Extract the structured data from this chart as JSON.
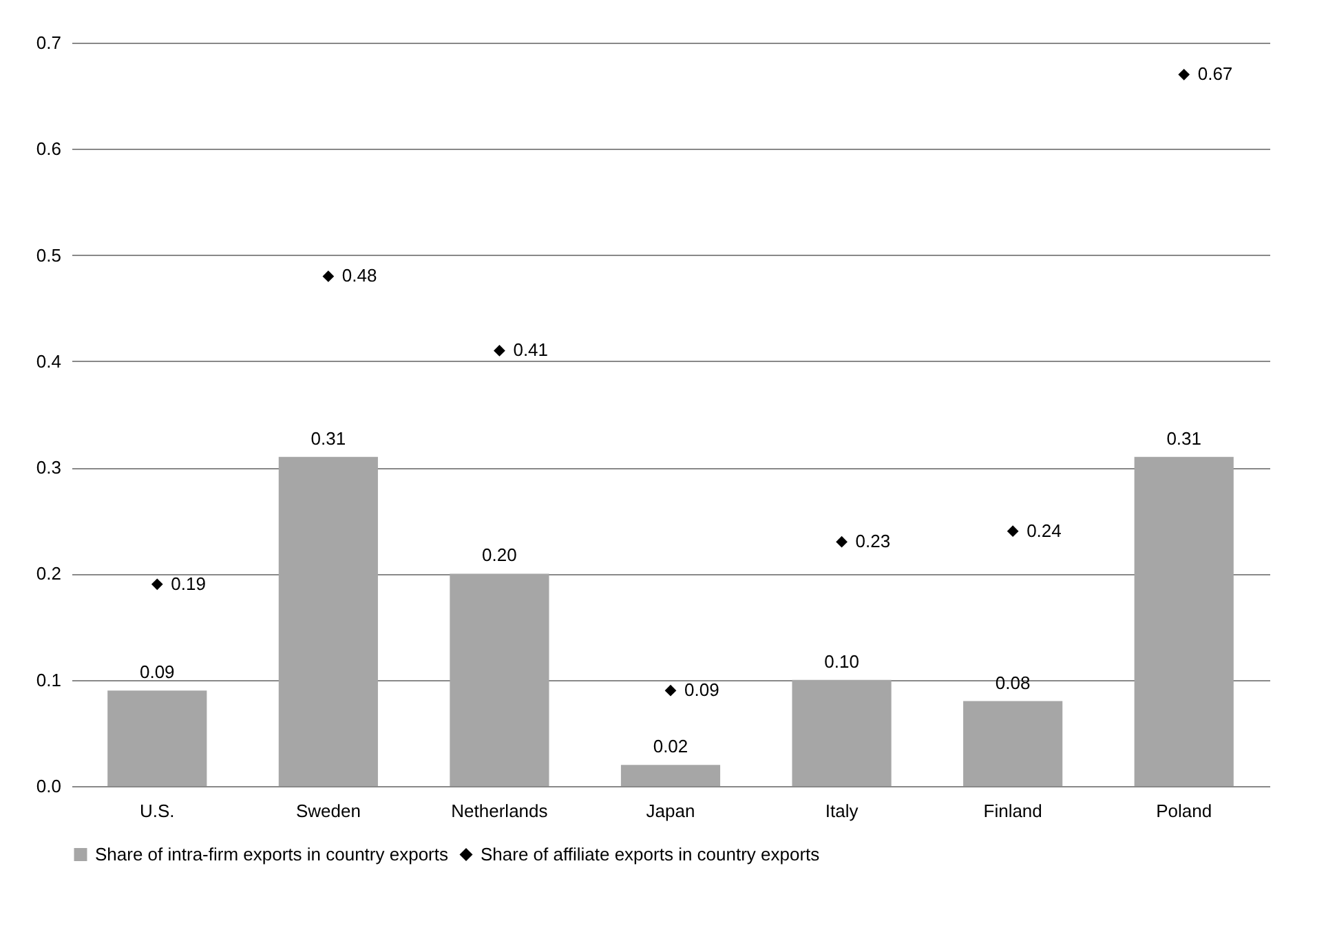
{
  "chart_data": {
    "type": "bar",
    "categories": [
      "U.S.",
      "Sweden",
      "Netherlands",
      "Japan",
      "Italy",
      "Finland",
      "Poland"
    ],
    "series": [
      {
        "name": "Share of intra-firm exports in country exports",
        "type": "bar",
        "color": "#a6a6a6",
        "values": [
          0.09,
          0.31,
          0.2,
          0.02,
          0.1,
          0.08,
          0.31
        ],
        "value_labels": [
          "0.09",
          "0.31",
          "0.20",
          "0.02",
          "0.10",
          "0.08",
          "0.31"
        ]
      },
      {
        "name": "Share of affiliate exports in country exports",
        "type": "scatter",
        "marker": "diamond",
        "color": "#000000",
        "values": [
          0.19,
          0.48,
          0.41,
          0.09,
          0.23,
          0.24,
          0.67
        ],
        "value_labels": [
          "0.19",
          "0.48",
          "0.41",
          "0.09",
          "0.23",
          "0.24",
          "0.67"
        ]
      }
    ],
    "ylim": [
      0,
      0.7
    ],
    "yticks": [
      {
        "value": 0,
        "label": "0.0"
      },
      {
        "value": 0.1,
        "label": "0.1"
      },
      {
        "value": 0.2,
        "label": "0.2"
      },
      {
        "value": 0.3,
        "label": "0.3"
      },
      {
        "value": 0.4,
        "label": "0.4"
      },
      {
        "value": 0.5,
        "label": "0.5"
      },
      {
        "value": 0.6,
        "label": "0.6"
      },
      {
        "value": 0.7,
        "label": "0.7"
      }
    ],
    "grid": "y",
    "legend": "bottom"
  }
}
